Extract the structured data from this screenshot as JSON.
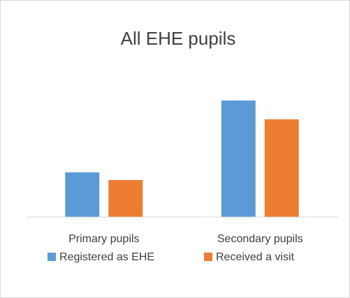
{
  "chart_data": {
    "type": "bar",
    "title": "All EHE pupils",
    "categories": [
      "Primary pupils",
      "Secondary pupils"
    ],
    "series": [
      {
        "name": "Registered as EHE",
        "color": "#5b9bd5",
        "values": [
          64,
          167
        ]
      },
      {
        "name": "Received a visit",
        "color": "#ed7d31",
        "values": [
          53,
          140
        ]
      }
    ],
    "ylim": [
      0,
      180
    ],
    "legend": "bottom"
  }
}
